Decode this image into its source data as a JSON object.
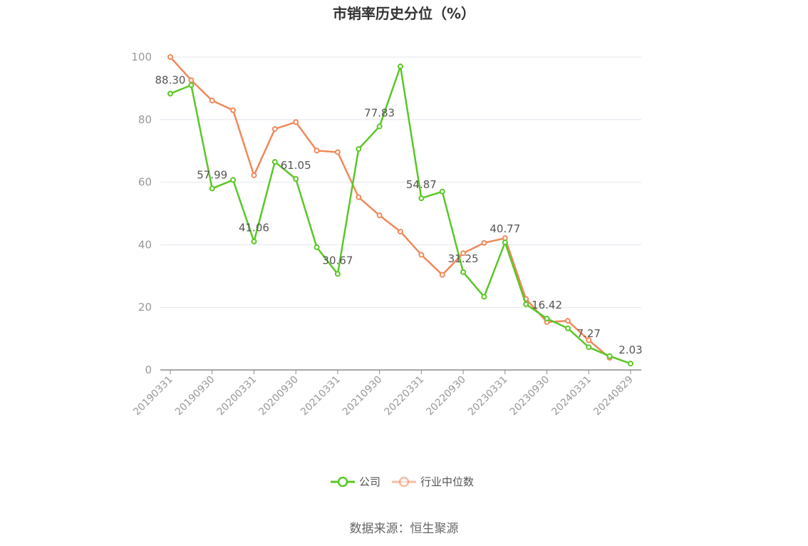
{
  "chart_data": {
    "type": "line",
    "title": "市销率历史分位（%）",
    "ylim": [
      0,
      100
    ],
    "yticks": [
      0,
      20,
      40,
      60,
      80,
      100
    ],
    "grid": true,
    "legend_position": "bottom",
    "x": [
      "20190331",
      "20190630",
      "20190930",
      "20191231",
      "20200331",
      "20200630",
      "20200930",
      "20201231",
      "20210331",
      "20210630",
      "20210930",
      "20211231",
      "20220331",
      "20220630",
      "20220930",
      "20221231",
      "20230331",
      "20230630",
      "20230930",
      "20231231",
      "20240331",
      "20240630",
      "20240829"
    ],
    "x_tick_labels": [
      "20190331",
      "20190930",
      "20200331",
      "20200930",
      "20210331",
      "20210930",
      "20220331",
      "20220930",
      "20230331",
      "20230930",
      "20240331",
      "20240829"
    ],
    "series": [
      {
        "name": "公司",
        "color": "#5ac726",
        "values": [
          88.3,
          91.0,
          57.99,
          60.7,
          41.06,
          66.5,
          61.05,
          39.2,
          30.67,
          70.6,
          77.83,
          97.0,
          54.87,
          57.0,
          31.25,
          23.4,
          40.77,
          21.0,
          16.42,
          13.3,
          7.27,
          4.4,
          2.03
        ]
      },
      {
        "name": "行业中位数",
        "color": "#f0895a",
        "values": [
          100.0,
          92.6,
          86.1,
          83.0,
          62.2,
          77.0,
          79.2,
          70.1,
          69.6,
          55.2,
          49.4,
          44.2,
          36.8,
          30.4,
          37.3,
          40.6,
          42.1,
          22.7,
          15.3,
          15.7,
          9.5,
          3.9,
          null
        ]
      }
    ],
    "data_labels": [
      {
        "index": 0,
        "text": "88.30"
      },
      {
        "index": 2,
        "text": "57.99"
      },
      {
        "index": 4,
        "text": "41.06"
      },
      {
        "index": 6,
        "text": "61.05"
      },
      {
        "index": 8,
        "text": "30.67"
      },
      {
        "index": 10,
        "text": "77.83"
      },
      {
        "index": 12,
        "text": "54.87"
      },
      {
        "index": 14,
        "text": "31.25"
      },
      {
        "index": 16,
        "text": "40.77"
      },
      {
        "index": 18,
        "text": "16.42"
      },
      {
        "index": 20,
        "text": "7.27"
      },
      {
        "index": 22,
        "text": "2.03"
      }
    ]
  },
  "source_text": "数据来源：恒生聚源"
}
